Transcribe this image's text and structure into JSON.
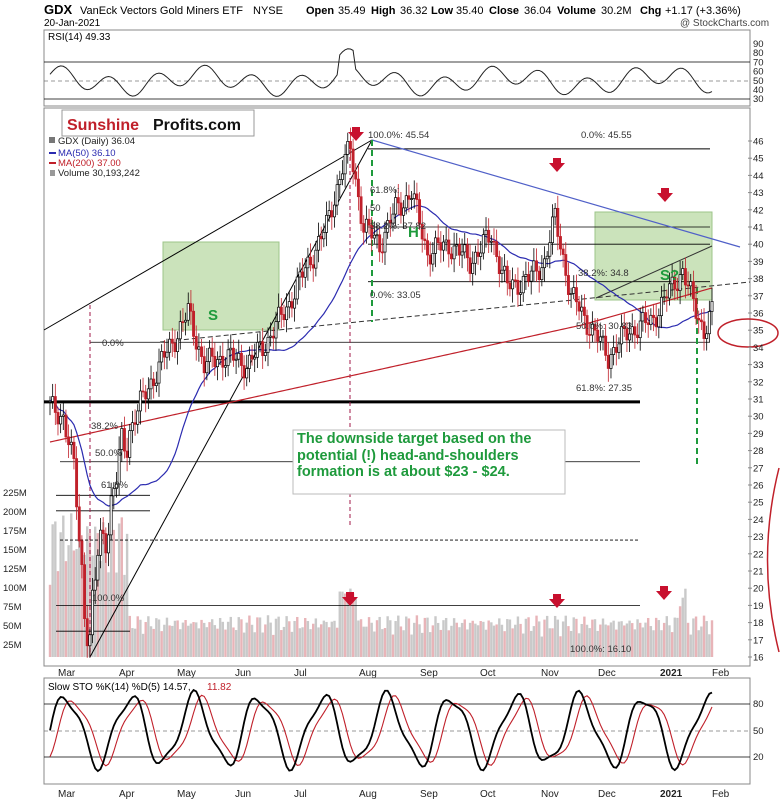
{
  "header": {
    "symbol": "GDX",
    "name": "VanEck Vectors Gold Miners ETF",
    "exchange": "NYSE",
    "date": "20-Jan-2021",
    "open_label": "Open",
    "open": "35.49",
    "high_label": "High",
    "high": "36.32",
    "low_label": "Low",
    "low": "35.40",
    "close_label": "Close",
    "close": "36.04",
    "volume_label": "Volume",
    "volume": "30.2M",
    "chg_label": "Chg",
    "chg": "+1.17 (+3.36%)",
    "copyright": "@ StockCharts.com"
  },
  "rsi_panel": {
    "label": "RSI(14) 49.33",
    "ticks": [
      "90",
      "80",
      "70",
      "60",
      "50",
      "40",
      "30"
    ]
  },
  "logo": {
    "part1": "Sunshine",
    "part2": "Profits.com"
  },
  "legend": {
    "title": "GDX (Daily) 36.04",
    "ma50": "MA(50) 36.10",
    "ma200": "MA(200) 37.00",
    "volume": "Volume 30,193,242"
  },
  "fib_labels": {
    "top": "100.0%: 45.54",
    "top_right": "0.0%: 45.55",
    "f618": "61.8%:",
    "f50": "50",
    "f382": "38.2%: 37.82",
    "low": "0.0%: 33.05",
    "right382": "38.2%: 34.8",
    "big50": "50.0%: 30.83",
    "big618": "61.8%: 27.35",
    "left0": "0.0%",
    "left382": "38.2%",
    "left50": "50.0%",
    "left618": "61.8%",
    "left100": "100.0%",
    "bottom100": "100.0%: 16.10"
  },
  "pattern_labels": {
    "left": "S",
    "head": "H",
    "right": "S?"
  },
  "annotation": "The downside target based on the potential (!) head-and-shoulders formation is at about $23 - $24.",
  "price_axis": [
    "46",
    "45",
    "44",
    "43",
    "42",
    "41",
    "40",
    "39",
    "38",
    "37",
    "36",
    "35",
    "34",
    "33",
    "32",
    "31",
    "30",
    "29",
    "28",
    "27",
    "26",
    "25",
    "24",
    "23",
    "22",
    "21",
    "20",
    "19",
    "18",
    "17",
    "16"
  ],
  "volume_axis": [
    "225M",
    "200M",
    "175M",
    "150M",
    "125M",
    "100M",
    "75M",
    "50M",
    "25M"
  ],
  "x_axis": [
    "Mar",
    "Apr",
    "May",
    "Jun",
    "Jul",
    "Aug",
    "Sep",
    "Oct",
    "Nov",
    "Dec",
    "2021",
    "Feb"
  ],
  "sto_panel": {
    "label": "Slow STO %K(14) %D(5) 14.57,",
    "label_d": "11.82",
    "ticks": [
      "80",
      "50",
      "20"
    ]
  },
  "colors": {
    "up": "#000000",
    "down": "#c0202a",
    "ma50": "#2b2bb0",
    "ma200": "#c0202a",
    "green_box": "#b9d9a4",
    "green_text": "#1e9a3c",
    "arrow": "#c8102e",
    "volume_bar": "#c9c9c9",
    "volume_red": "#e8b4b8"
  },
  "chart_data": {
    "type": "candlestick",
    "title": "GDX (Daily)",
    "x_range": [
      "Mar 2020",
      "Feb 2021"
    ],
    "y_range_price": [
      16,
      46
    ],
    "closes_approx": [
      [
        "Mar-01",
        30.5
      ],
      [
        "Mar-10",
        27
      ],
      [
        "Mar-16",
        17
      ],
      [
        "Mar-20",
        22
      ],
      [
        "Apr-01",
        23
      ],
      [
        "Apr-10",
        30
      ],
      [
        "May-01",
        32
      ],
      [
        "May-15",
        34.5
      ],
      [
        "Jun-01",
        33
      ],
      [
        "Jun-15",
        32.5
      ],
      [
        "Jul-01",
        34
      ],
      [
        "Jul-15",
        38
      ],
      [
        "Aug-05",
        45
      ],
      [
        "Aug-20",
        41
      ],
      [
        "Sep-10",
        41.5
      ],
      [
        "Sep-25",
        38
      ],
      [
        "Oct-10",
        40
      ],
      [
        "Oct-30",
        38
      ],
      [
        "Nov-09",
        40
      ],
      [
        "Nov-30",
        33.5
      ],
      [
        "Dec-15",
        35
      ],
      [
        "Jan-06",
        38
      ],
      [
        "Jan-20",
        36
      ]
    ],
    "ma50_last": 36.1,
    "ma200_last": 37.0,
    "volume_last": 30193242
  }
}
